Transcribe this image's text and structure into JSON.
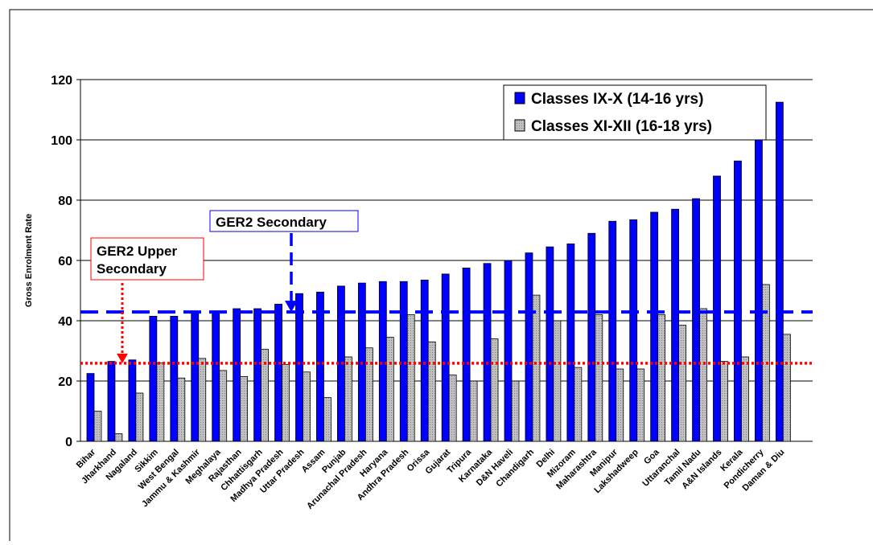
{
  "chart_data": {
    "type": "bar",
    "y_label": "Gross Enrolment Rate",
    "categories": [
      "Bihar",
      "Jharkhand",
      "Nagaland",
      "Sikkim",
      "West Bengal",
      "Jammu & Kashmir",
      "Meghalaya",
      "Rajasthan",
      "Chhattisgarh",
      "Madhya Pradesh",
      "Uttar Pradesh",
      "Assam",
      "Punjab",
      "Arunachal Pradesh",
      "Haryana",
      "Andhra Pradesh",
      "Orissa",
      "Gujarat",
      "Tripura",
      "Karnataka",
      "D&N Haveli",
      "Chandigarh",
      "Delhi",
      "Mizoram",
      "Maharashtra",
      "Manipur",
      "Lakshadweep",
      "Goa",
      "Uttaranchal",
      "Tamil Nadu",
      "A&N Islands",
      "Kerala",
      "Pondicherry",
      "Daman & Diu"
    ],
    "series": [
      {
        "name": "Classes IX-X (14-16 yrs)",
        "color": "#0000ff",
        "values": [
          22.5,
          26.5,
          27,
          41.5,
          41.5,
          42.5,
          43,
          44,
          44,
          45.5,
          49,
          49.5,
          51.5,
          52.5,
          53,
          53,
          53.5,
          55.5,
          57.5,
          59,
          60,
          62.5,
          64.5,
          65.5,
          69,
          73,
          73.5,
          76,
          77,
          80.5,
          88,
          93,
          100.5,
          112.5
        ]
      },
      {
        "name": "Classes XI-XII (16-18 yrs)",
        "color": "#c0c0c0",
        "values": [
          10,
          2.5,
          16,
          26,
          21,
          27.5,
          23.5,
          21.5,
          30.5,
          25.5,
          23,
          14.5,
          28,
          31,
          34.5,
          42,
          33,
          22,
          20,
          34,
          20,
          48.5,
          40,
          24.5,
          42,
          24,
          24,
          42,
          38.5,
          44,
          26.5,
          28,
          52,
          35.5
        ]
      }
    ],
    "reference_lines": [
      {
        "label": "GER2 Secondary",
        "value": 42.9,
        "color": "#0000ff",
        "style": "dashed"
      },
      {
        "label": [
          "GER2 Upper",
          "Secondary"
        ],
        "value": 25.9,
        "color": "#ff0000",
        "style": "dotted"
      }
    ],
    "ylim": [
      0,
      120
    ],
    "yticks": [
      0,
      20,
      40,
      60,
      80,
      100,
      120
    ],
    "grid": true,
    "legend": "upper right"
  }
}
